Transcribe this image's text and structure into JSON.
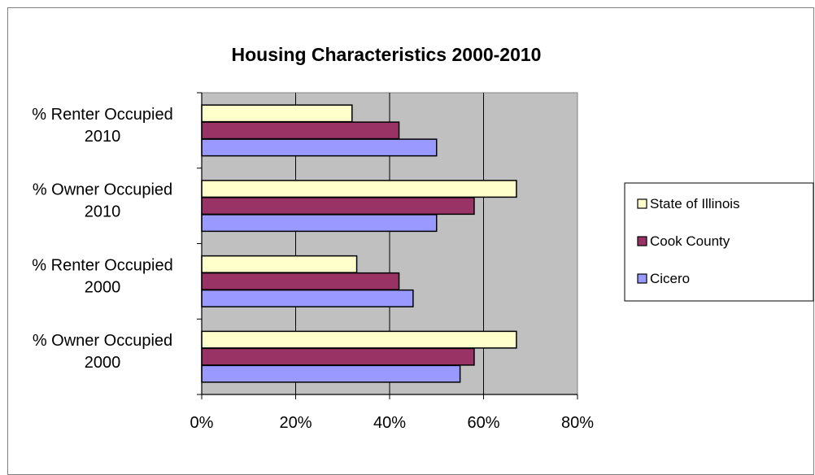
{
  "chart_data": {
    "type": "bar",
    "orientation": "horizontal",
    "title": "Housing Characteristics 2000-2010",
    "categories": [
      [
        "% Owner Occupied",
        "2000"
      ],
      [
        "% Renter Occupied",
        "2000"
      ],
      [
        "% Owner Occupied",
        "2010"
      ],
      [
        "% Renter Occupied",
        "2010"
      ]
    ],
    "series": [
      {
        "name": "Cicero",
        "color": "#9999ff",
        "values": [
          55,
          45,
          50,
          50
        ]
      },
      {
        "name": "Cook County",
        "color": "#993366",
        "values": [
          58,
          42,
          58,
          42
        ]
      },
      {
        "name": "State of Illinois",
        "color": "#ffffcc",
        "values": [
          67,
          33,
          67,
          32
        ]
      }
    ],
    "legend_order": [
      "State of Illinois",
      "Cook County",
      "Cicero"
    ],
    "xlim": [
      0,
      80
    ],
    "x_ticks": [
      0,
      20,
      40,
      60,
      80
    ],
    "x_tick_labels": [
      "0%",
      "20%",
      "40%",
      "60%",
      "80%"
    ],
    "grid": "vertical",
    "plot_background": "#c0c0c0",
    "legend_position": "right"
  }
}
